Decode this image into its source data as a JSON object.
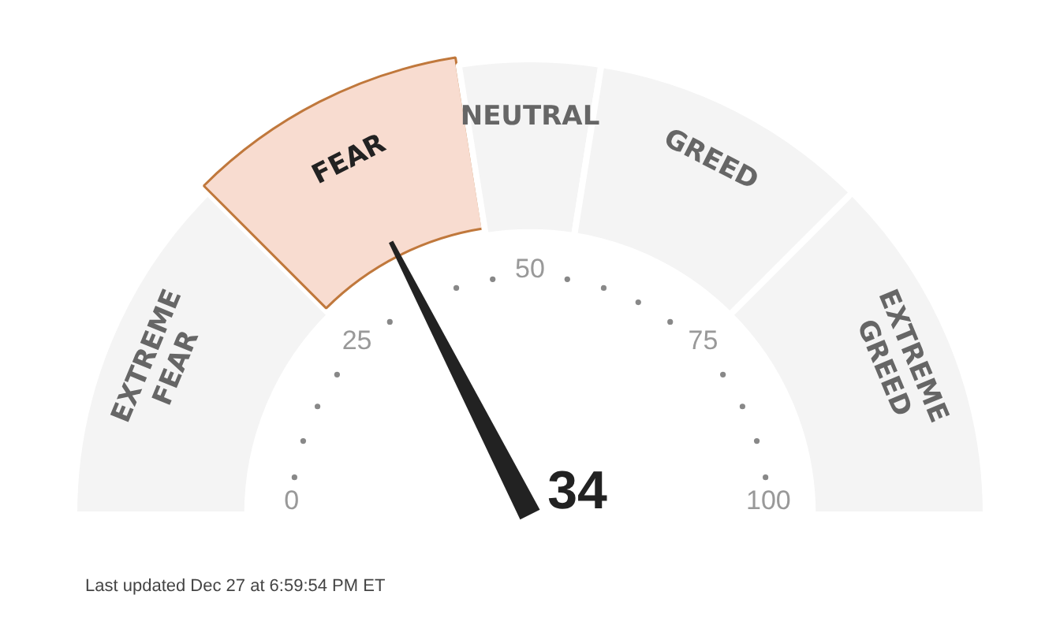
{
  "chart_data": {
    "type": "donut",
    "categories": [
      "EXTREME FEAR",
      "FEAR",
      "NEUTRAL",
      "GREED",
      "EXTREME GREED"
    ],
    "values": [
      25,
      20,
      10,
      20,
      25
    ],
    "colors": [
      "#f4f4f4",
      "#f8dcd0",
      "#f4f4f4",
      "#f4f4f4",
      "#f4f4f4"
    ],
    "needle": "FEAR",
    "legend": false,
    "annotations": [
      "34",
      "0",
      "25",
      "50",
      "75",
      "100",
      "Last updated Dec 27 at 6:59:54 PM ET"
    ]
  }
}
